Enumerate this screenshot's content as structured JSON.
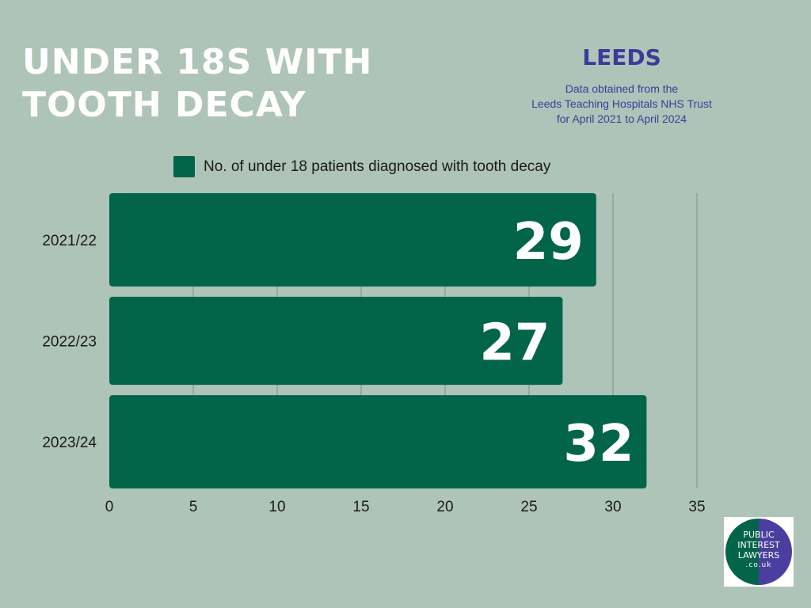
{
  "header": {
    "title_lines": [
      "UNDER 18S WITH",
      "TOOTH DECAY"
    ],
    "region": "LEEDS",
    "source_lines": [
      "Data obtained from the",
      "Leeds Teaching Hospitals NHS Trust",
      "for April 2021 to April 2024"
    ]
  },
  "legend": {
    "label": "No. of under 18 patients diagnosed with tooth decay",
    "color": "#02654a"
  },
  "colors": {
    "background": "#afc4b8",
    "bar": "#02654a",
    "title": "#ffffff",
    "region_text": "#3b3b9a",
    "grid": "#7f8f86"
  },
  "chart_data": {
    "type": "bar",
    "orientation": "horizontal",
    "categories": [
      "2021/22",
      "2022/23",
      "2023/24"
    ],
    "series": [
      {
        "name": "No. of under 18 patients diagnosed with tooth decay",
        "values": [
          29,
          27,
          32
        ]
      }
    ],
    "data_labels": [
      "29",
      "27",
      "32"
    ],
    "xlim": [
      0,
      35
    ],
    "x_ticks": [
      "0",
      "5",
      "10",
      "15",
      "20",
      "25",
      "30",
      "35"
    ],
    "grid": true,
    "legend_position": "top"
  },
  "logo": {
    "lines": [
      "PUBLIC",
      "INTEREST",
      "LAWYERS",
      ".co.uk"
    ]
  }
}
